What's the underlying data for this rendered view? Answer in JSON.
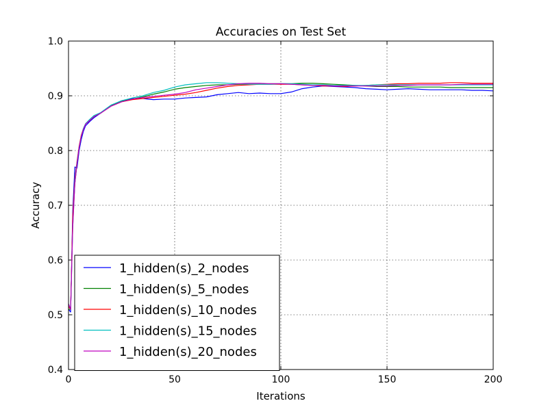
{
  "chart_data": {
    "type": "line",
    "title": "Accuracies on Test Set",
    "xlabel": "Iterations",
    "ylabel": "Accuracy",
    "xlim": [
      0,
      200
    ],
    "ylim": [
      0.4,
      1.0
    ],
    "xticks": [
      "0",
      "50",
      "100",
      "150",
      "200"
    ],
    "yticks": [
      "0.4",
      "0.5",
      "0.6",
      "0.7",
      "0.8",
      "0.9",
      "1.0"
    ],
    "grid": true,
    "legend_position": "lower-left",
    "x": [
      0,
      1,
      2,
      3,
      4,
      5,
      6,
      7,
      8,
      10,
      12,
      15,
      20,
      25,
      30,
      35,
      40,
      45,
      50,
      55,
      60,
      65,
      70,
      75,
      80,
      85,
      90,
      95,
      100,
      105,
      110,
      115,
      120,
      125,
      130,
      135,
      140,
      145,
      150,
      155,
      160,
      165,
      170,
      175,
      180,
      185,
      190,
      195,
      200
    ],
    "series": [
      {
        "name": "1_hidden(s)_2_nodes",
        "color": "#0000ff",
        "values": [
          0.51,
          0.505,
          0.69,
          0.77,
          0.768,
          0.8,
          0.82,
          0.835,
          0.845,
          0.853,
          0.86,
          0.868,
          0.882,
          0.891,
          0.895,
          0.895,
          0.893,
          0.894,
          0.894,
          0.896,
          0.897,
          0.898,
          0.902,
          0.904,
          0.906,
          0.904,
          0.905,
          0.904,
          0.904,
          0.907,
          0.913,
          0.916,
          0.918,
          0.917,
          0.916,
          0.915,
          0.913,
          0.912,
          0.911,
          0.912,
          0.913,
          0.912,
          0.911,
          0.911,
          0.911,
          0.911,
          0.91,
          0.91,
          0.909
        ]
      },
      {
        "name": "1_hidden(s)_5_nodes",
        "color": "#008000",
        "values": [
          0.51,
          0.51,
          0.67,
          0.74,
          0.775,
          0.805,
          0.825,
          0.84,
          0.848,
          0.855,
          0.862,
          0.868,
          0.882,
          0.89,
          0.894,
          0.898,
          0.903,
          0.907,
          0.912,
          0.915,
          0.917,
          0.919,
          0.92,
          0.92,
          0.921,
          0.921,
          0.921,
          0.922,
          0.922,
          0.922,
          0.923,
          0.923,
          0.922,
          0.921,
          0.92,
          0.919,
          0.918,
          0.917,
          0.917,
          0.917,
          0.916,
          0.916,
          0.916,
          0.916,
          0.915,
          0.915,
          0.915,
          0.915,
          0.915
        ]
      },
      {
        "name": "1_hidden(s)_10_nodes",
        "color": "#ff0000",
        "values": [
          0.515,
          0.51,
          0.68,
          0.75,
          0.78,
          0.808,
          0.828,
          0.84,
          0.848,
          0.855,
          0.862,
          0.868,
          0.881,
          0.889,
          0.893,
          0.895,
          0.897,
          0.899,
          0.901,
          0.903,
          0.906,
          0.91,
          0.914,
          0.917,
          0.919,
          0.92,
          0.921,
          0.921,
          0.921,
          0.921,
          0.92,
          0.919,
          0.918,
          0.918,
          0.917,
          0.918,
          0.919,
          0.92,
          0.921,
          0.922,
          0.922,
          0.923,
          0.923,
          0.923,
          0.924,
          0.924,
          0.923,
          0.923,
          0.923
        ]
      },
      {
        "name": "1_hidden(s)_15_nodes",
        "color": "#00bfbf",
        "values": [
          0.52,
          0.51,
          0.66,
          0.745,
          0.778,
          0.806,
          0.826,
          0.84,
          0.849,
          0.857,
          0.864,
          0.869,
          0.883,
          0.891,
          0.896,
          0.9,
          0.906,
          0.91,
          0.916,
          0.92,
          0.922,
          0.924,
          0.924,
          0.923,
          0.922,
          0.921,
          0.921,
          0.921,
          0.922,
          0.922,
          0.921,
          0.92,
          0.92,
          0.919,
          0.919,
          0.919,
          0.919,
          0.92,
          0.92,
          0.92,
          0.92,
          0.92,
          0.92,
          0.92,
          0.92,
          0.92,
          0.92,
          0.92,
          0.92
        ]
      },
      {
        "name": "1_hidden(s)_20_nodes",
        "color": "#bf00bf",
        "values": [
          0.52,
          0.51,
          0.66,
          0.74,
          0.776,
          0.805,
          0.826,
          0.838,
          0.848,
          0.855,
          0.862,
          0.868,
          0.881,
          0.889,
          0.894,
          0.897,
          0.899,
          0.901,
          0.903,
          0.906,
          0.911,
          0.914,
          0.917,
          0.92,
          0.922,
          0.923,
          0.923,
          0.922,
          0.922,
          0.921,
          0.92,
          0.919,
          0.919,
          0.918,
          0.918,
          0.918,
          0.918,
          0.918,
          0.918,
          0.919,
          0.919,
          0.92,
          0.92,
          0.92,
          0.92,
          0.921,
          0.921,
          0.921,
          0.921
        ]
      }
    ]
  }
}
